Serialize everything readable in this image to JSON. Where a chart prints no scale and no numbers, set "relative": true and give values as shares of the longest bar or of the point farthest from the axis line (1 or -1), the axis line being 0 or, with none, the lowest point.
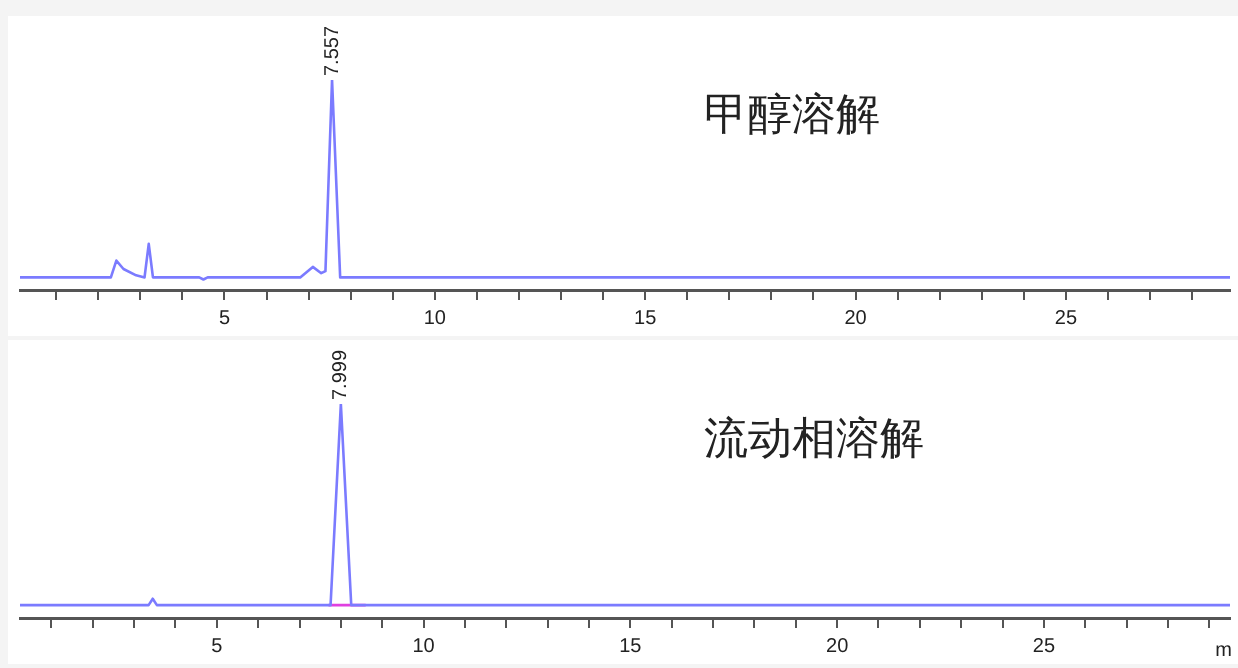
{
  "chart_data": [
    {
      "type": "line",
      "title": "甲醇溶解",
      "relative": true,
      "legend": false,
      "grid": false,
      "marker": "none",
      "line_style": "solid",
      "xlim": [
        0.14,
        28.9
      ],
      "xticks": [
        {
          "value": 1,
          "label": null
        },
        {
          "value": 2,
          "label": null
        },
        {
          "value": 3,
          "label": null
        },
        {
          "value": 4,
          "label": null
        },
        5,
        {
          "value": 6,
          "label": null
        },
        {
          "value": 7,
          "label": null
        },
        {
          "value": 8,
          "label": null
        },
        {
          "value": 9,
          "label": null
        },
        10,
        {
          "value": 11,
          "label": null
        },
        {
          "value": 12,
          "label": null
        },
        {
          "value": 13,
          "label": null
        },
        {
          "value": 14,
          "label": null
        },
        15,
        {
          "value": 16,
          "label": null
        },
        {
          "value": 17,
          "label": null
        },
        {
          "value": 18,
          "label": null
        },
        {
          "value": 19,
          "label": null
        },
        20,
        {
          "value": 21,
          "label": null
        },
        {
          "value": 22,
          "label": null
        },
        {
          "value": 23,
          "label": null
        },
        {
          "value": 24,
          "label": null
        },
        25,
        {
          "value": 26,
          "label": null
        },
        {
          "value": 27,
          "label": null
        },
        {
          "value": 28,
          "label": null
        }
      ],
      "annotations": [
        {
          "text": "7.557",
          "x": 7.557,
          "y": 1
        }
      ],
      "series": [
        {
          "color": "#7b7bff",
          "x": [
            0.14,
            2.3,
            2.43,
            2.6,
            2.9,
            3.1,
            3.2,
            3.3,
            4.4,
            4.5,
            4.6,
            6.8,
            7.1,
            7.3,
            7.4,
            7.557,
            7.75,
            28.9
          ],
          "values": [
            0.06,
            0.06,
            0.14,
            0.1,
            0.07,
            0.06,
            0.22,
            0.06,
            0.06,
            0.05,
            0.06,
            0.06,
            0.11,
            0.08,
            0.09,
            1,
            0.06,
            0.06
          ]
        }
      ]
    },
    {
      "type": "line",
      "title": "流动相溶解",
      "relative": true,
      "legend": false,
      "grid": false,
      "marker": "none",
      "line_style": "solid",
      "xlim": [
        0.24,
        29.5
      ],
      "xlabel": "m",
      "xticks": [
        {
          "value": 1,
          "label": null
        },
        {
          "value": 2,
          "label": null
        },
        {
          "value": 3,
          "label": null
        },
        {
          "value": 4,
          "label": null
        },
        5,
        {
          "value": 6,
          "label": null
        },
        {
          "value": 7,
          "label": null
        },
        {
          "value": 8,
          "label": null
        },
        {
          "value": 9,
          "label": null
        },
        10,
        {
          "value": 11,
          "label": null
        },
        {
          "value": 12,
          "label": null
        },
        {
          "value": 13,
          "label": null
        },
        {
          "value": 14,
          "label": null
        },
        15,
        {
          "value": 16,
          "label": null
        },
        {
          "value": 17,
          "label": null
        },
        {
          "value": 18,
          "label": null
        },
        {
          "value": 19,
          "label": null
        },
        20,
        {
          "value": 21,
          "label": null
        },
        {
          "value": 22,
          "label": null
        },
        {
          "value": 23,
          "label": null
        },
        {
          "value": 24,
          "label": null
        },
        25,
        {
          "value": 26,
          "label": null
        },
        {
          "value": 27,
          "label": null
        },
        {
          "value": 28,
          "label": null
        },
        {
          "value": 29,
          "label": null
        }
      ],
      "annotations": [
        {
          "text": "7.999",
          "x": 7.999,
          "y": 1
        }
      ],
      "series": [
        {
          "color": "#7b7bff",
          "x": [
            0.24,
            3.35,
            3.45,
            3.55,
            7.75,
            7.999,
            8.25,
            29.5
          ],
          "values": [
            0.06,
            0.06,
            0.09,
            0.06,
            0.06,
            1,
            0.06,
            0.06
          ]
        },
        {
          "color": "#e040e0",
          "x": [
            7.7,
            8.6
          ],
          "values": [
            0.06,
            0.06
          ]
        }
      ]
    }
  ]
}
